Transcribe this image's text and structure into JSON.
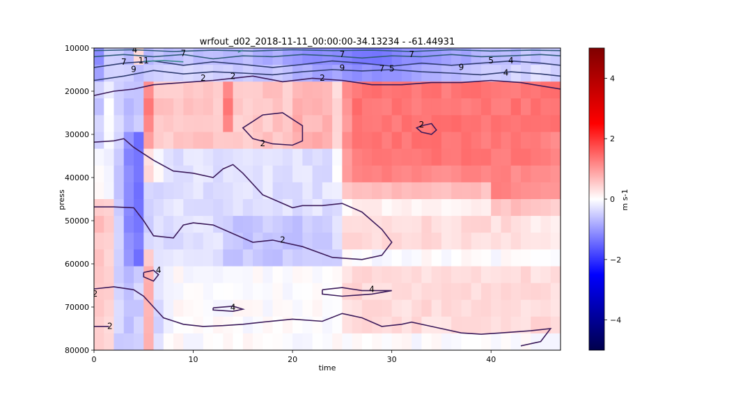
{
  "chart_data": {
    "type": "heatmap",
    "title": "wrfout_d02_2018-11-11_00:00:00-34.13234 - -61.44931",
    "xlabel": "time",
    "ylabel": "press",
    "xlim": [
      0,
      47
    ],
    "ylim": [
      80000,
      10000
    ],
    "x_ticks": [
      "0",
      "10",
      "20",
      "30",
      "40"
    ],
    "y_ticks": [
      "10000",
      "20000",
      "30000",
      "40000",
      "50000",
      "60000",
      "70000",
      "80000"
    ],
    "colormap": "bwr",
    "colorbar": {
      "label": "m s-1",
      "range": [
        -5,
        5
      ],
      "ticks": [
        "4",
        "2",
        "0",
        "−2",
        "−4"
      ],
      "colors": [
        "#00004c",
        "#0000ff",
        "#ffffff",
        "#ff0000",
        "#7f0000"
      ]
    },
    "grid_rows": 18,
    "grid_cols": 47,
    "contour_labels": [
      {
        "text": "4",
        "x": 4.1,
        "y": 10500
      },
      {
        "text": "7",
        "x": 9.0,
        "y": 11300
      },
      {
        "text": "7",
        "x": 25.0,
        "y": 11500
      },
      {
        "text": "7",
        "x": 32.0,
        "y": 11500
      },
      {
        "text": "7",
        "x": 3.0,
        "y": 13300
      },
      {
        "text": "11",
        "x": 5.0,
        "y": 13000
      },
      {
        "text": "5",
        "x": 40.0,
        "y": 13000
      },
      {
        "text": "4",
        "x": 42.0,
        "y": 13000
      },
      {
        "text": "9",
        "x": 4.0,
        "y": 15000
      },
      {
        "text": "9",
        "x": 25.0,
        "y": 14700
      },
      {
        "text": "7",
        "x": 29.0,
        "y": 14800
      },
      {
        "text": "5",
        "x": 30.0,
        "y": 14800
      },
      {
        "text": "9",
        "x": 37.0,
        "y": 14500
      },
      {
        "text": "4",
        "x": 41.5,
        "y": 15800
      },
      {
        "text": "2",
        "x": 11.0,
        "y": 17000
      },
      {
        "text": "2",
        "x": 14.0,
        "y": 16600
      },
      {
        "text": "2",
        "x": 23.0,
        "y": 17000
      },
      {
        "text": "2",
        "x": 33.0,
        "y": 27800
      },
      {
        "text": "2",
        "x": 17.0,
        "y": 32200
      },
      {
        "text": "2",
        "x": 19.0,
        "y": 54500
      },
      {
        "text": "4",
        "x": 6.5,
        "y": 61500
      },
      {
        "text": "4",
        "x": 28.0,
        "y": 66000
      },
      {
        "text": "2",
        "x": 0.1,
        "y": 67000
      },
      {
        "text": "4",
        "x": 14.0,
        "y": 70200
      },
      {
        "text": "2",
        "x": 1.6,
        "y": 74500
      }
    ]
  }
}
